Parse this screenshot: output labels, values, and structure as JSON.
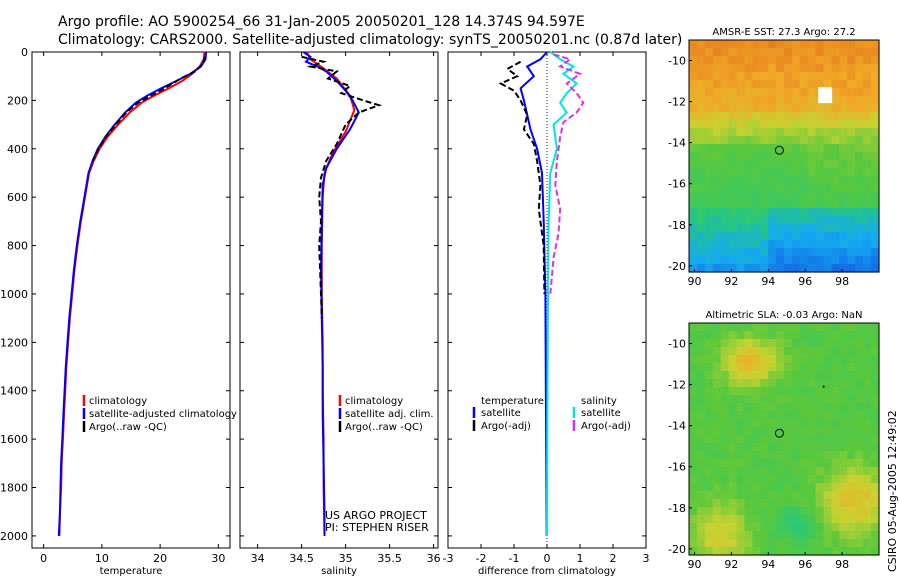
{
  "header": {
    "line1": "Argo profile: AO 5900254_66 31-Jan-2005 20050201_128 14.374S 94.597E",
    "line2": "Climatology: CARS2000. Satellite-adjusted climatology: synTS_20050201.nc (0.87d later)"
  },
  "footer": {
    "project": "US ARGO PROJECT",
    "pi": "PI: STEPHEN RISER",
    "credit": "CSIRO 05-Aug-2005 12:49:02"
  },
  "colors": {
    "climatology": "#ff0000",
    "satellite": "#0000ff",
    "argo": "#000000",
    "sal_satellite": "#00e5e5",
    "sal_argo": "#e030e0"
  },
  "chart_data": [
    {
      "id": "temperature",
      "type": "line",
      "xlabel": "temperature",
      "ylabel": "",
      "xlim": [
        -2,
        32
      ],
      "ylim": [
        0,
        2050
      ],
      "xticks": [
        0,
        10,
        20,
        30
      ],
      "yticks": [
        0,
        200,
        400,
        600,
        800,
        1000,
        1200,
        1400,
        1600,
        1800,
        2000
      ],
      "legend": [
        "climatology",
        "satellite-adjusted climatology",
        "Argo(..raw -QC)"
      ],
      "series": [
        {
          "name": "climatology",
          "color": "#ff0000",
          "points": [
            [
              27.6,
              0
            ],
            [
              27.5,
              30
            ],
            [
              26.8,
              60
            ],
            [
              25.5,
              90
            ],
            [
              23.8,
              120
            ],
            [
              21.5,
              150
            ],
            [
              19.0,
              180
            ],
            [
              16.8,
              210
            ],
            [
              14.8,
              250
            ],
            [
              12.8,
              300
            ],
            [
              11.0,
              350
            ],
            [
              9.6,
              400
            ],
            [
              8.6,
              450
            ],
            [
              7.8,
              500
            ],
            [
              7.1,
              600
            ],
            [
              6.4,
              700
            ],
            [
              5.8,
              800
            ],
            [
              5.3,
              900
            ],
            [
              4.9,
              1000
            ],
            [
              4.5,
              1100
            ],
            [
              4.2,
              1200
            ],
            [
              3.9,
              1300
            ],
            [
              3.7,
              1400
            ],
            [
              3.5,
              1500
            ],
            [
              3.3,
              1600
            ],
            [
              3.1,
              1700
            ],
            [
              3.0,
              1800
            ],
            [
              2.8,
              1900
            ],
            [
              2.7,
              2000
            ]
          ]
        },
        {
          "name": "satellite-adjusted climatology",
          "color": "#0000ff",
          "points": [
            [
              27.9,
              0
            ],
            [
              27.8,
              30
            ],
            [
              27.0,
              60
            ],
            [
              25.2,
              90
            ],
            [
              22.8,
              120
            ],
            [
              20.2,
              150
            ],
            [
              17.8,
              180
            ],
            [
              15.8,
              210
            ],
            [
              14.0,
              250
            ],
            [
              12.2,
              300
            ],
            [
              10.6,
              350
            ],
            [
              9.3,
              400
            ],
            [
              8.4,
              450
            ],
            [
              7.7,
              500
            ],
            [
              7.0,
              600
            ],
            [
              6.3,
              700
            ],
            [
              5.7,
              800
            ],
            [
              5.2,
              900
            ],
            [
              4.8,
              1000
            ],
            [
              4.4,
              1100
            ],
            [
              4.1,
              1200
            ],
            [
              3.8,
              1300
            ],
            [
              3.6,
              1400
            ],
            [
              3.4,
              1500
            ],
            [
              3.2,
              1600
            ],
            [
              3.0,
              1700
            ],
            [
              2.9,
              1800
            ],
            [
              2.8,
              1900
            ],
            [
              2.6,
              2000
            ]
          ]
        },
        {
          "name": "Argo(..raw -QC)",
          "color": "#000000",
          "dashed": true,
          "points": [
            [
              27.7,
              20
            ],
            [
              27.3,
              50
            ],
            [
              26.0,
              80
            ],
            [
              23.5,
              110
            ],
            [
              20.8,
              150
            ],
            [
              18.5,
              180
            ],
            [
              16.2,
              210
            ],
            [
              14.2,
              250
            ],
            [
              12.4,
              300
            ],
            [
              10.7,
              350
            ],
            [
              9.4,
              400
            ],
            [
              8.4,
              450
            ]
          ]
        }
      ]
    },
    {
      "id": "salinity",
      "type": "line",
      "xlabel": "salinity",
      "ylabel": "",
      "xlim": [
        33.8,
        36.05
      ],
      "ylim": [
        0,
        2050
      ],
      "xticks": [
        34,
        34.5,
        35,
        35.5,
        36
      ],
      "yticks": [
        0,
        200,
        400,
        600,
        800,
        1000,
        1200,
        1400,
        1600,
        1800,
        2000
      ],
      "legend": [
        "climatology",
        "satellite adj. clim.",
        "Argo(..raw -QC)"
      ],
      "series": [
        {
          "name": "climatology",
          "color": "#ff0000",
          "points": [
            [
              34.56,
              0
            ],
            [
              34.6,
              30
            ],
            [
              34.72,
              60
            ],
            [
              34.9,
              110
            ],
            [
              35.05,
              180
            ],
            [
              35.1,
              240
            ],
            [
              35.0,
              330
            ],
            [
              34.85,
              420
            ],
            [
              34.76,
              500
            ],
            [
              34.74,
              600
            ],
            [
              34.73,
              800
            ],
            [
              34.73,
              1000
            ],
            [
              34.74,
              1200
            ],
            [
              34.74,
              1400
            ],
            [
              34.75,
              1600
            ],
            [
              34.75,
              1800
            ],
            [
              34.76,
              2000
            ]
          ]
        },
        {
          "name": "satellite adj. clim.",
          "color": "#0000ff",
          "points": [
            [
              34.52,
              0
            ],
            [
              34.6,
              20
            ],
            [
              34.55,
              40
            ],
            [
              34.68,
              60
            ],
            [
              34.78,
              80
            ],
            [
              34.9,
              120
            ],
            [
              35.0,
              160
            ],
            [
              35.08,
              200
            ],
            [
              35.15,
              250
            ],
            [
              35.05,
              320
            ],
            [
              34.9,
              400
            ],
            [
              34.78,
              480
            ],
            [
              34.74,
              550
            ],
            [
              34.73,
              700
            ],
            [
              34.72,
              900
            ],
            [
              34.73,
              1100
            ],
            [
              34.74,
              1300
            ],
            [
              34.74,
              1500
            ],
            [
              34.75,
              1700
            ],
            [
              34.76,
              1900
            ],
            [
              34.76,
              2000
            ]
          ]
        },
        {
          "name": "Argo(..raw -QC)",
          "color": "#000000",
          "dashed": true,
          "points": [
            [
              34.5,
              20
            ],
            [
              34.75,
              40
            ],
            [
              34.6,
              60
            ],
            [
              34.9,
              80
            ],
            [
              34.8,
              110
            ],
            [
              35.05,
              140
            ],
            [
              34.95,
              170
            ],
            [
              35.2,
              200
            ],
            [
              35.38,
              220
            ],
            [
              35.15,
              250
            ],
            [
              35.0,
              300
            ],
            [
              34.9,
              380
            ],
            [
              34.78,
              450
            ],
            [
              34.72,
              520
            ],
            [
              34.7,
              600
            ],
            [
              34.72,
              700
            ],
            [
              34.7,
              800
            ],
            [
              34.71,
              900
            ],
            [
              34.72,
              1000
            ],
            [
              34.73,
              1100
            ]
          ]
        }
      ]
    },
    {
      "id": "difference",
      "type": "line",
      "xlabel": "difference from climatology",
      "ylabel": "",
      "xlim": [
        -3,
        3
      ],
      "ylim": [
        0,
        2050
      ],
      "xticks": [
        -3,
        -2,
        -1,
        0,
        1,
        2,
        3
      ],
      "yticks": [
        0,
        200,
        400,
        600,
        800,
        1000,
        1200,
        1400,
        1600,
        1800,
        2000
      ],
      "legend_left_title": "temperature",
      "legend_right_title": "salinity",
      "legend": [
        "satellite",
        "Argo(-adj)",
        "satellite",
        "Argo(-adj)"
      ],
      "series": [
        {
          "name": "temperature satellite",
          "color": "#0000ff",
          "points": [
            [
              0.0,
              0
            ],
            [
              -0.2,
              30
            ],
            [
              -0.6,
              60
            ],
            [
              -0.4,
              100
            ],
            [
              -0.8,
              150
            ],
            [
              -0.7,
              200
            ],
            [
              -0.6,
              260
            ],
            [
              -0.5,
              320
            ],
            [
              -0.3,
              400
            ],
            [
              -0.15,
              500
            ],
            [
              -0.1,
              700
            ],
            [
              -0.05,
              1000
            ],
            [
              -0.03,
              1500
            ],
            [
              -0.01,
              2000
            ]
          ]
        },
        {
          "name": "temperature Argo(-adj)",
          "color": "#000000",
          "dashed": true,
          "points": [
            [
              -0.8,
              40
            ],
            [
              -1.2,
              70
            ],
            [
              -0.9,
              100
            ],
            [
              -1.4,
              130
            ],
            [
              -1.0,
              160
            ],
            [
              -0.8,
              200
            ],
            [
              -0.6,
              260
            ],
            [
              -0.7,
              320
            ],
            [
              -0.4,
              380
            ],
            [
              -0.3,
              450
            ],
            [
              -0.2,
              550
            ],
            [
              -0.25,
              650
            ],
            [
              -0.1,
              800
            ],
            [
              -0.08,
              1000
            ]
          ]
        },
        {
          "name": "salinity satellite",
          "color": "#00e5e5",
          "points": [
            [
              0.1,
              0
            ],
            [
              0.4,
              30
            ],
            [
              0.8,
              60
            ],
            [
              0.5,
              90
            ],
            [
              0.9,
              130
            ],
            [
              0.6,
              170
            ],
            [
              0.4,
              210
            ],
            [
              0.6,
              250
            ],
            [
              0.2,
              300
            ],
            [
              0.3,
              400
            ],
            [
              0.1,
              500
            ],
            [
              0.05,
              700
            ],
            [
              0.03,
              1000
            ],
            [
              0.01,
              1500
            ],
            [
              0.0,
              2000
            ]
          ]
        },
        {
          "name": "salinity Argo(-adj)",
          "color": "#e030e0",
          "dashed": true,
          "points": [
            [
              0.2,
              10
            ],
            [
              0.7,
              30
            ],
            [
              0.4,
              60
            ],
            [
              1.0,
              90
            ],
            [
              0.6,
              130
            ],
            [
              0.9,
              170
            ],
            [
              1.1,
              210
            ],
            [
              0.9,
              250
            ],
            [
              0.5,
              290
            ],
            [
              0.4,
              350
            ],
            [
              0.3,
              450
            ],
            [
              0.25,
              550
            ],
            [
              0.4,
              650
            ],
            [
              0.35,
              750
            ],
            [
              0.2,
              850
            ],
            [
              0.1,
              1000
            ]
          ]
        }
      ]
    },
    {
      "id": "sst-map",
      "type": "heatmap",
      "title": "AMSR-E SST: 27.3 Argo: 27.2",
      "xticks": [
        90,
        92,
        94,
        96,
        98
      ],
      "yticks": [
        -10,
        -12,
        -14,
        -16,
        -18,
        -20
      ],
      "xlim": [
        89.7,
        100
      ],
      "ylim": [
        -20.3,
        -9
      ],
      "float_position": [
        94.6,
        -14.37
      ]
    },
    {
      "id": "sla-map",
      "type": "heatmap",
      "title": "Altimetric SLA: -0.03 Argo: NaN",
      "xticks": [
        90,
        92,
        94,
        96,
        98
      ],
      "yticks": [
        -10,
        -12,
        -14,
        -16,
        -18,
        -20
      ],
      "xlim": [
        89.7,
        100
      ],
      "ylim": [
        -20.3,
        -9
      ],
      "float_position": [
        94.6,
        -14.37
      ]
    }
  ]
}
